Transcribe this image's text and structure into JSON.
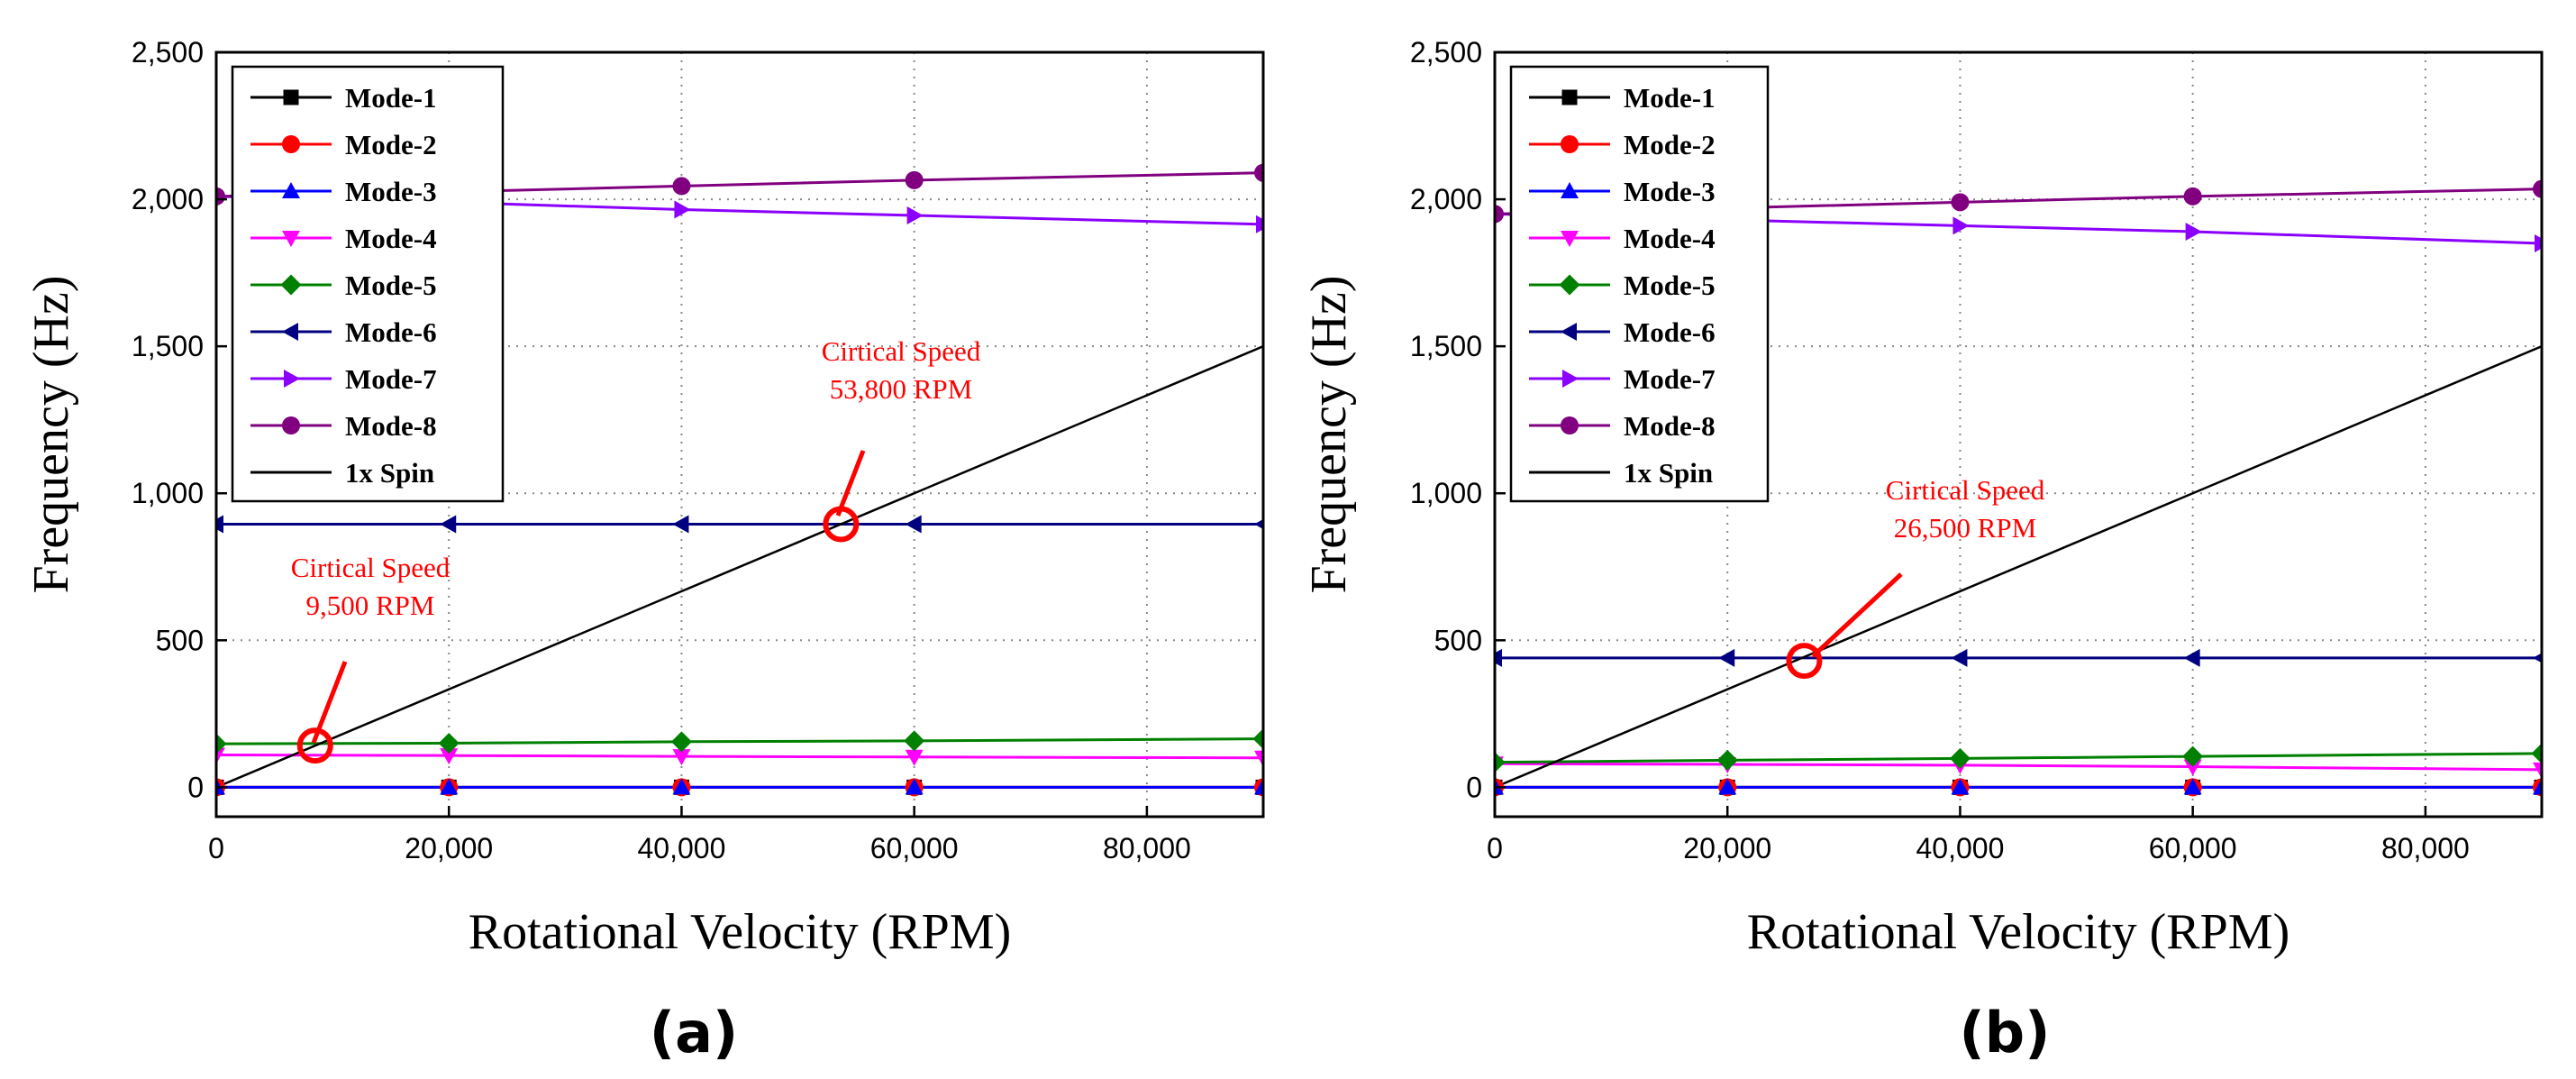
{
  "chart_data": [
    {
      "type": "line",
      "panel_label": "(a)",
      "xlabel": "Rotational Velocity (RPM)",
      "ylabel": "Frequency (Hz)",
      "xlim": [
        0,
        90000
      ],
      "ylim": [
        -100,
        2500
      ],
      "xticks": [
        "0",
        "20,000",
        "40,000",
        "60,000",
        "80,000"
      ],
      "yticks": [
        "0",
        "500",
        "1,000",
        "1,500",
        "2,000",
        "2,500"
      ],
      "grid": true,
      "legend_position": "top-left",
      "x": [
        0,
        20000,
        40000,
        60000,
        90000
      ],
      "series": [
        {
          "name": "Mode-1",
          "color": "#000000",
          "marker": "square",
          "values": [
            0,
            0,
            0,
            0,
            0
          ]
        },
        {
          "name": "Mode-2",
          "color": "#ff0000",
          "marker": "circle",
          "values": [
            0,
            0,
            0,
            0,
            0
          ]
        },
        {
          "name": "Mode-3",
          "color": "#0000ff",
          "marker": "triangle-up",
          "values": [
            0,
            0,
            0,
            0,
            0
          ]
        },
        {
          "name": "Mode-4",
          "color": "#ff00ff",
          "marker": "triangle-down",
          "values": [
            110,
            108,
            105,
            103,
            100
          ]
        },
        {
          "name": "Mode-5",
          "color": "#008000",
          "marker": "diamond",
          "values": [
            148,
            150,
            155,
            158,
            165
          ]
        },
        {
          "name": "Mode-6",
          "color": "#000080",
          "marker": "triangle-left",
          "values": [
            895,
            895,
            895,
            895,
            895
          ]
        },
        {
          "name": "Mode-7",
          "color": "#8b00ff",
          "marker": "triangle-right",
          "values": [
            2010,
            1990,
            1965,
            1945,
            1915
          ]
        },
        {
          "name": "Mode-8",
          "color": "#800080",
          "marker": "circle",
          "values": [
            2010,
            2025,
            2045,
            2065,
            2090
          ]
        },
        {
          "name": "1x Spin",
          "color": "#000000",
          "marker": "none",
          "x": [
            0,
            90000
          ],
          "values": [
            0,
            1500
          ]
        }
      ],
      "annotations": [
        {
          "title": "Cirtical Speed",
          "value": "9,500 RPM",
          "x": 8500,
          "y": 142
        },
        {
          "title": "Cirtical Speed",
          "value": "53,800 RPM",
          "x": 53700,
          "y": 895
        }
      ]
    },
    {
      "type": "line",
      "panel_label": "(b)",
      "xlabel": "Rotational Velocity (RPM)",
      "ylabel": "Frequency (Hz)",
      "xlim": [
        0,
        90000
      ],
      "ylim": [
        -100,
        2500
      ],
      "xticks": [
        "0",
        "20,000",
        "40,000",
        "60,000",
        "80,000"
      ],
      "yticks": [
        "0",
        "500",
        "1,000",
        "1,500",
        "2,000",
        "2,500"
      ],
      "grid": true,
      "legend_position": "top-left",
      "x": [
        0,
        20000,
        40000,
        60000,
        90000
      ],
      "series": [
        {
          "name": "Mode-1",
          "color": "#000000",
          "marker": "square",
          "values": [
            0,
            0,
            0,
            0,
            0
          ]
        },
        {
          "name": "Mode-2",
          "color": "#ff0000",
          "marker": "circle",
          "values": [
            0,
            0,
            0,
            0,
            0
          ]
        },
        {
          "name": "Mode-3",
          "color": "#0000ff",
          "marker": "triangle-up",
          "values": [
            0,
            0,
            0,
            0,
            0
          ]
        },
        {
          "name": "Mode-4",
          "color": "#ff00ff",
          "marker": "triangle-down",
          "values": [
            80,
            78,
            75,
            70,
            60
          ]
        },
        {
          "name": "Mode-5",
          "color": "#008000",
          "marker": "diamond",
          "values": [
            85,
            92,
            98,
            105,
            115
          ]
        },
        {
          "name": "Mode-6",
          "color": "#000080",
          "marker": "triangle-left",
          "values": [
            440,
            440,
            440,
            440,
            440
          ]
        },
        {
          "name": "Mode-7",
          "color": "#8b00ff",
          "marker": "triangle-right",
          "values": [
            1950,
            1930,
            1910,
            1890,
            1850
          ]
        },
        {
          "name": "Mode-8",
          "color": "#800080",
          "marker": "circle",
          "values": [
            1950,
            1970,
            1990,
            2010,
            2035
          ]
        },
        {
          "name": "1x Spin",
          "color": "#000000",
          "marker": "none",
          "x": [
            0,
            90000
          ],
          "values": [
            0,
            1500
          ]
        }
      ],
      "annotations": [
        {
          "title": "Cirtical Speed",
          "value": "26,500 RPM",
          "x": 26600,
          "y": 430
        }
      ]
    }
  ]
}
